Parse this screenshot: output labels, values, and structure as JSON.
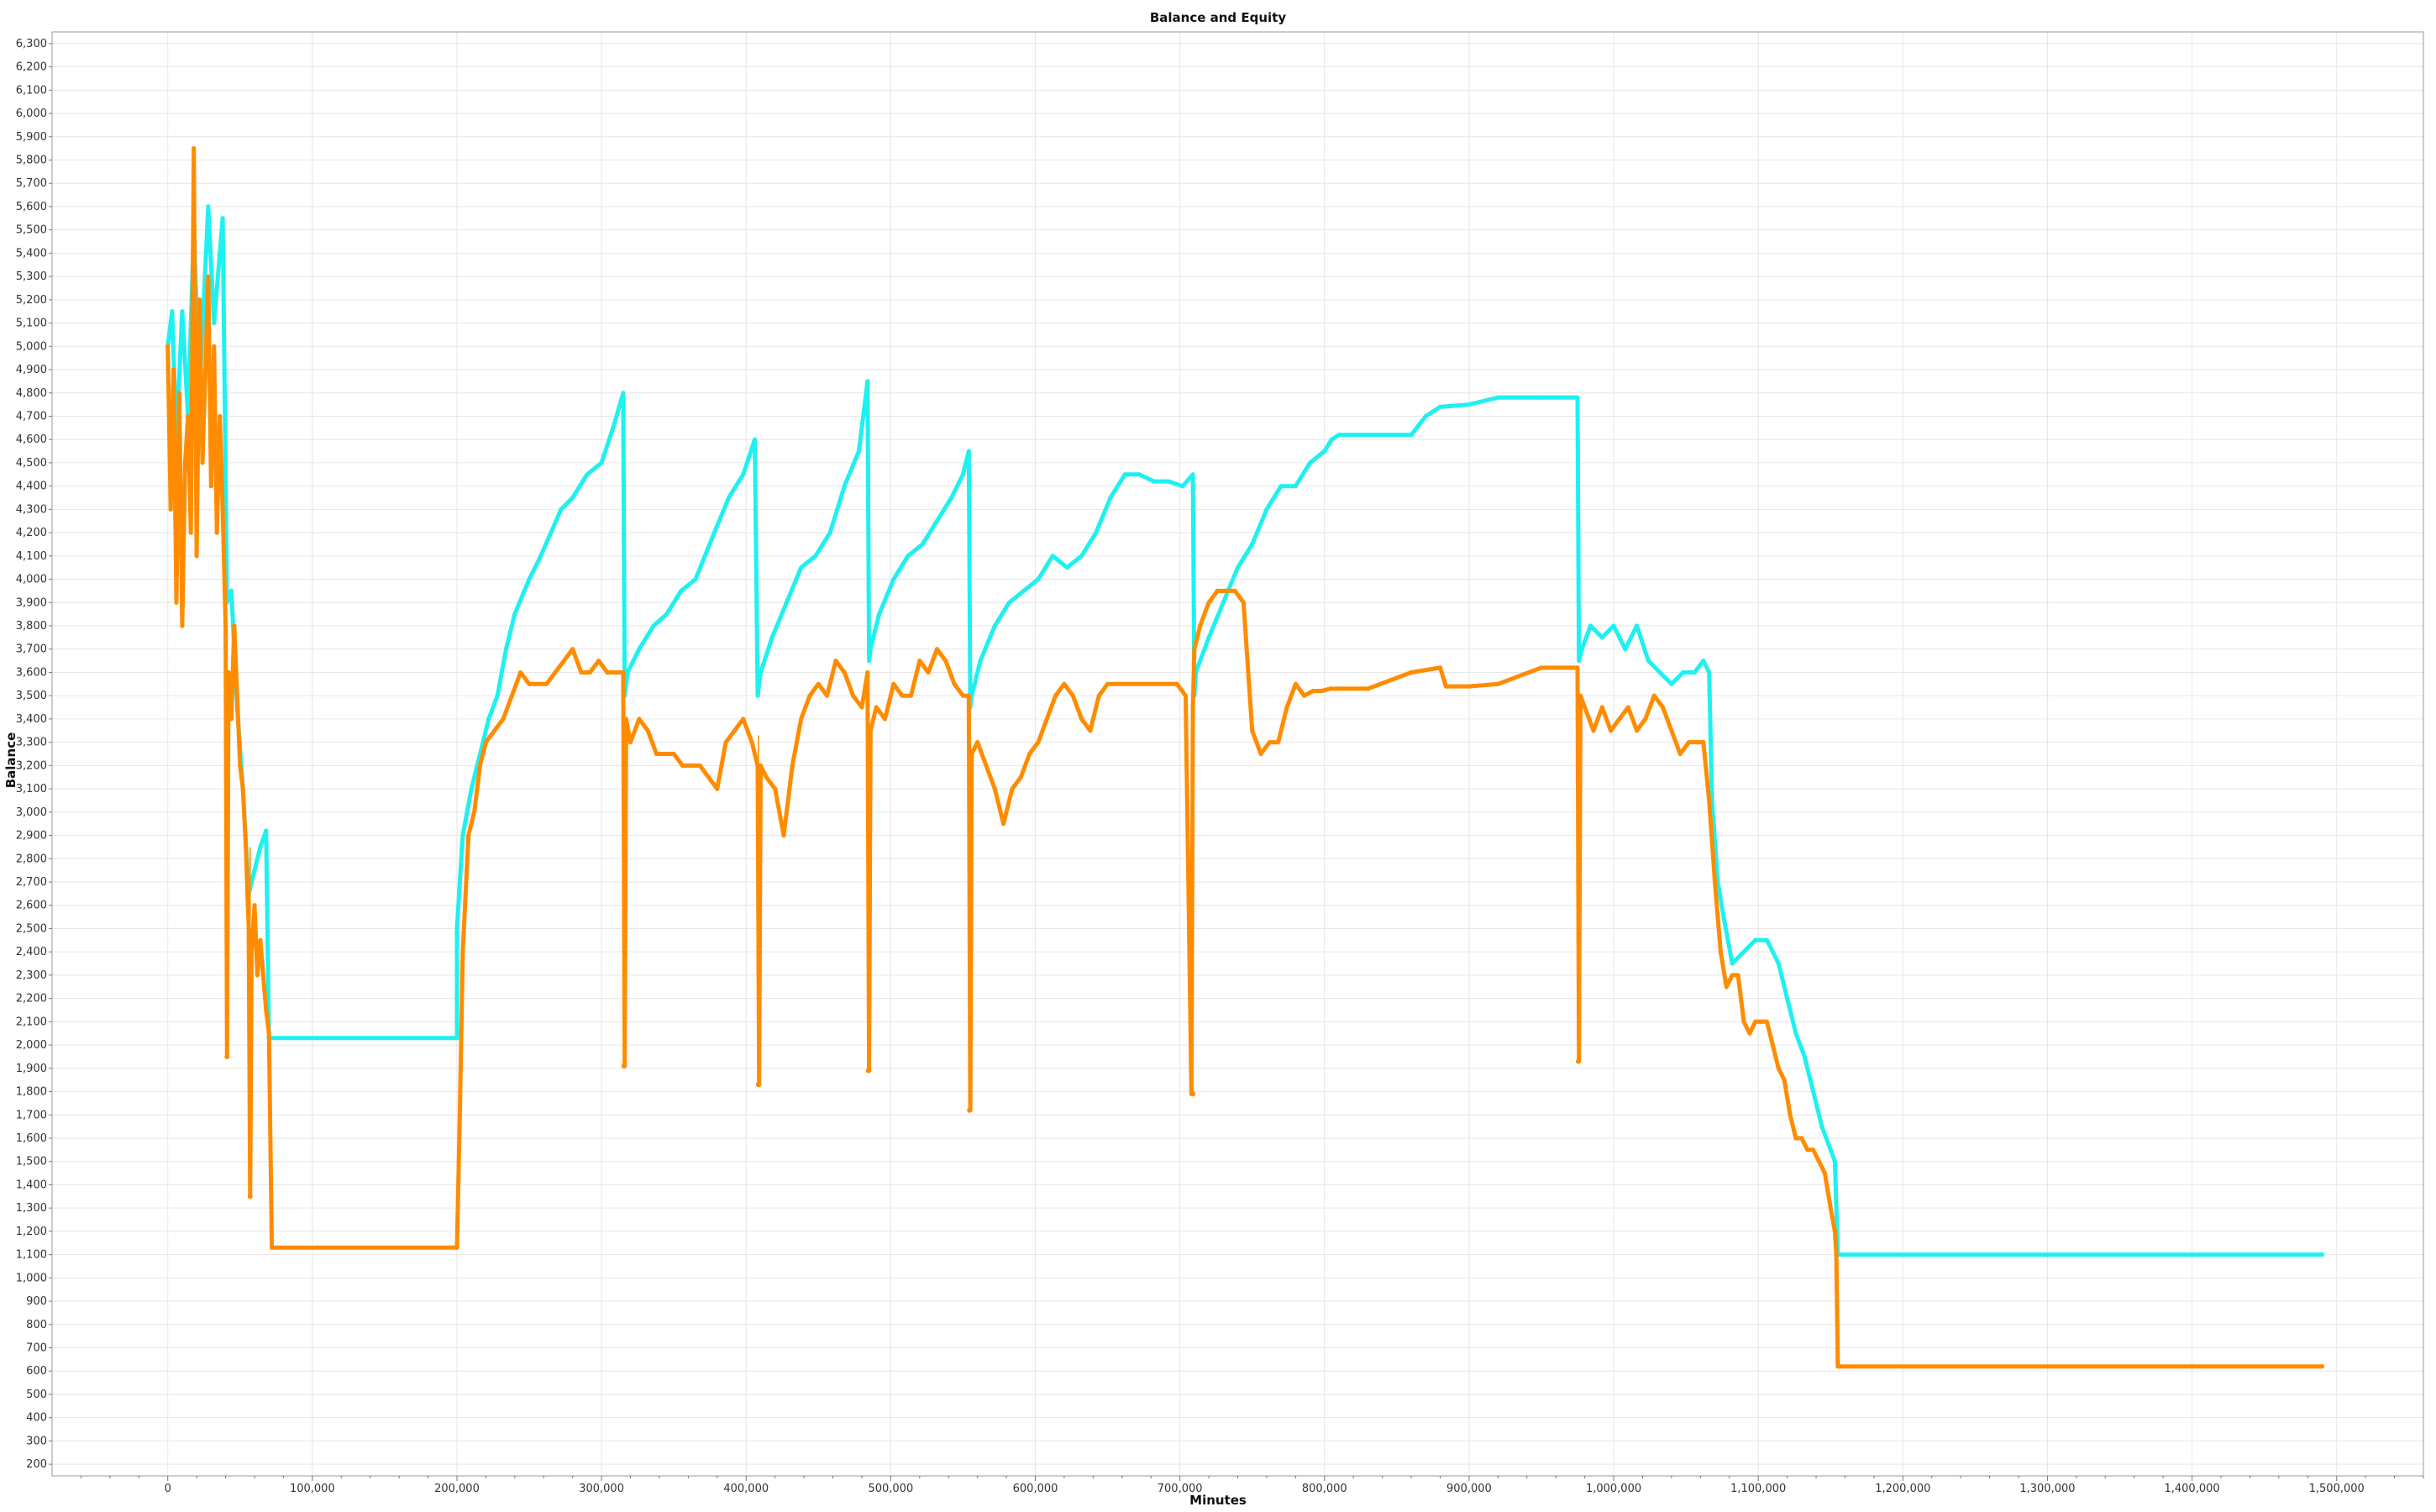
{
  "chart_data": {
    "type": "line",
    "title": "Balance and Equity",
    "xlabel": "Minutes",
    "ylabel": "Balance",
    "xlim": [
      -80000,
      1560000
    ],
    "ylim": [
      150,
      6350
    ],
    "x_ticks": [
      0,
      100000,
      200000,
      300000,
      400000,
      500000,
      600000,
      700000,
      800000,
      900000,
      1000000,
      1100000,
      1200000,
      1300000,
      1400000,
      1500000
    ],
    "x_tick_labels": [
      "0",
      "100,000",
      "200,000",
      "300,000",
      "400,000",
      "500,000",
      "600,000",
      "700,000",
      "800,000",
      "900,000",
      "1,000,000",
      "1,100,000",
      "1,200,000",
      "1,300,000",
      "1,400,000",
      "1,500,000"
    ],
    "y_ticks": [
      200,
      300,
      400,
      500,
      600,
      700,
      800,
      900,
      1000,
      1100,
      1200,
      1300,
      1400,
      1500,
      1600,
      1700,
      1800,
      1900,
      2000,
      2100,
      2200,
      2300,
      2400,
      2500,
      2600,
      2700,
      2800,
      2900,
      3000,
      3100,
      3200,
      3300,
      3400,
      3500,
      3600,
      3700,
      3800,
      3900,
      4000,
      4100,
      4200,
      4300,
      4400,
      4500,
      4600,
      4700,
      4800,
      4900,
      5000,
      5100,
      5200,
      5300,
      5400,
      5500,
      5600,
      5700,
      5800,
      5900,
      6000,
      6100,
      6200,
      6300
    ],
    "y_tick_labels": [
      "200",
      "300",
      "400",
      "500",
      "600",
      "700",
      "800",
      "900",
      "1,000",
      "1,100",
      "1,200",
      "1,300",
      "1,400",
      "1,500",
      "1,600",
      "1,700",
      "1,800",
      "1,900",
      "2,000",
      "2,100",
      "2,200",
      "2,300",
      "2,400",
      "2,500",
      "2,600",
      "2,700",
      "2,800",
      "2,900",
      "3,000",
      "3,100",
      "3,200",
      "3,300",
      "3,400",
      "3,500",
      "3,600",
      "3,700",
      "3,800",
      "3,900",
      "4,000",
      "4,100",
      "4,200",
      "4,300",
      "4,400",
      "4,500",
      "4,600",
      "4,700",
      "4,800",
      "4,900",
      "5,000",
      "5,100",
      "5,200",
      "5,300",
      "5,400",
      "5,500",
      "5,600",
      "5,700",
      "5,800",
      "5,900",
      "6,000",
      "6,100",
      "6,200",
      "6,300"
    ],
    "grid": true,
    "series": [
      {
        "color": "#1FF0F0",
        "x": [
          0,
          3000,
          6000,
          10000,
          14000,
          18000,
          22000,
          25000,
          28000,
          32000,
          36000,
          38000,
          41000,
          44000,
          46000,
          48000,
          52000,
          56000,
          60000,
          64000,
          68000,
          70000,
          200000,
          200000,
          204000,
          210000,
          216000,
          222000,
          228000,
          234000,
          240000,
          250000,
          258000,
          265000,
          272000,
          280000,
          290000,
          300000,
          308000,
          315000,
          316000,
          318000,
          326000,
          336000,
          345000,
          355000,
          365000,
          378000,
          388000,
          398000,
          406000,
          408000,
          410000,
          418000,
          428000,
          438000,
          448000,
          458000,
          468000,
          478000,
          484000,
          485000,
          486000,
          492000,
          502000,
          512000,
          522000,
          532000,
          542000,
          550000,
          554000,
          555000,
          556000,
          562000,
          572000,
          582000,
          592000,
          602000,
          612000,
          622000,
          632000,
          642000,
          652000,
          662000,
          672000,
          682000,
          692000,
          702000,
          709000,
          710000,
          711000,
          720000,
          730000,
          740000,
          750000,
          760000,
          770000,
          780000,
          790000,
          800000,
          805000,
          810000,
          840000,
          860000,
          870000,
          880000,
          900000,
          920000,
          950000,
          975000,
          976000,
          978000,
          984000,
          992000,
          1000000,
          1008000,
          1016000,
          1024000,
          1032000,
          1040000,
          1048000,
          1056000,
          1062000,
          1066000,
          1068000,
          1072000,
          1076000,
          1082000,
          1090000,
          1098000,
          1106000,
          1114000,
          1120000,
          1126000,
          1132000,
          1138000,
          1144000,
          1150000,
          1153000,
          1155000,
          1490000
        ],
        "y": [
          5000,
          5150,
          4600,
          5150,
          4700,
          5500,
          4800,
          5200,
          5600,
          5100,
          5400,
          5550,
          3900,
          3950,
          3700,
          3450,
          3100,
          2650,
          2750,
          2850,
          2920,
          2030,
          2030,
          2500,
          2900,
          3100,
          3250,
          3400,
          3500,
          3700,
          3850,
          4000,
          4100,
          4200,
          4300,
          4350,
          4450,
          4500,
          4650,
          4800,
          3500,
          3600,
          3700,
          3800,
          3850,
          3950,
          4000,
          4200,
          4350,
          4450,
          4600,
          3500,
          3600,
          3750,
          3900,
          4050,
          4100,
          4200,
          4400,
          4550,
          4850,
          3650,
          3700,
          3850,
          4000,
          4100,
          4150,
          4250,
          4350,
          4450,
          4550,
          3450,
          3500,
          3650,
          3800,
          3900,
          3950,
          4000,
          4100,
          4050,
          4100,
          4200,
          4350,
          4450,
          4450,
          4420,
          4420,
          4400,
          4450,
          3500,
          3600,
          3750,
          3900,
          4050,
          4150,
          4300,
          4400,
          4400,
          4500,
          4550,
          4600,
          4620,
          4620,
          4620,
          4700,
          4740,
          4750,
          4780,
          4780,
          4780,
          3650,
          3700,
          3800,
          3750,
          3800,
          3700,
          3800,
          3650,
          3600,
          3550,
          3600,
          3600,
          3650,
          3600,
          3050,
          2700,
          2550,
          2350,
          2400,
          2450,
          2450,
          2350,
          2200,
          2050,
          1950,
          1800,
          1650,
          1550,
          1500,
          1100,
          1100
        ]
      },
      {
        "color": "#FF8C00",
        "x": [
          0,
          2000,
          4000,
          6000,
          8000,
          10000,
          12000,
          14000,
          16000,
          18000,
          20000,
          22000,
          24000,
          26000,
          28000,
          30000,
          32000,
          34000,
          36000,
          38000,
          40000,
          41000,
          42000,
          44000,
          46000,
          48000,
          50000,
          52000,
          54000,
          56000,
          57000,
          58000,
          60000,
          62000,
          64000,
          66000,
          68000,
          70000,
          72000,
          200000,
          202000,
          204000,
          208000,
          212000,
          216000,
          220000,
          226000,
          232000,
          238000,
          244000,
          250000,
          256000,
          262000,
          268000,
          274000,
          280000,
          286000,
          292000,
          298000,
          304000,
          310000,
          315000,
          316000,
          317000,
          320000,
          326000,
          332000,
          338000,
          344000,
          350000,
          356000,
          362000,
          368000,
          374000,
          380000,
          386000,
          392000,
          398000,
          404000,
          408000,
          409000,
          410000,
          414000,
          420000,
          426000,
          432000,
          438000,
          444000,
          450000,
          456000,
          462000,
          468000,
          474000,
          480000,
          484000,
          485000,
          486000,
          490000,
          496000,
          502000,
          508000,
          514000,
          520000,
          526000,
          532000,
          538000,
          544000,
          550000,
          554000,
          555000,
          556000,
          560000,
          566000,
          572000,
          578000,
          584000,
          590000,
          596000,
          602000,
          608000,
          614000,
          620000,
          626000,
          632000,
          638000,
          644000,
          650000,
          656000,
          662000,
          668000,
          674000,
          680000,
          686000,
          692000,
          698000,
          704000,
          708000,
          709000,
          710000,
          714000,
          720000,
          726000,
          732000,
          738000,
          744000,
          750000,
          756000,
          762000,
          768000,
          774000,
          780000,
          786000,
          792000,
          798000,
          804000,
          810000,
          830000,
          860000,
          880000,
          884000,
          900000,
          920000,
          950000,
          970000,
          975000,
          976000,
          977000,
          980000,
          986000,
          992000,
          998000,
          1004000,
          1010000,
          1016000,
          1022000,
          1028000,
          1034000,
          1040000,
          1046000,
          1052000,
          1058000,
          1062000,
          1066000,
          1070000,
          1074000,
          1078000,
          1082000,
          1086000,
          1090000,
          1094000,
          1098000,
          1102000,
          1106000,
          1110000,
          1114000,
          1118000,
          1122000,
          1126000,
          1130000,
          1134000,
          1138000,
          1142000,
          1146000,
          1150000,
          1153000,
          1154000,
          1155000,
          1490000
        ],
        "y": [
          5000,
          4300,
          4900,
          3900,
          4800,
          3800,
          4500,
          4700,
          4200,
          5850,
          4100,
          5200,
          4500,
          4900,
          5300,
          4400,
          5000,
          4200,
          4700,
          4300,
          3800,
          1950,
          3600,
          3400,
          3800,
          3500,
          3200,
          3100,
          2850,
          2500,
          1350,
          2400,
          2600,
          2300,
          2450,
          2300,
          2150,
          2050,
          1130,
          1130,
          1700,
          2400,
          2900,
          3000,
          3200,
          3300,
          3350,
          3400,
          3500,
          3600,
          3550,
          3550,
          3550,
          3600,
          3650,
          3700,
          3600,
          3600,
          3650,
          3600,
          3600,
          3600,
          1910,
          3400,
          3300,
          3400,
          3350,
          3250,
          3250,
          3250,
          3200,
          3200,
          3200,
          3150,
          3100,
          3300,
          3350,
          3400,
          3300,
          3200,
          1830,
          3200,
          3150,
          3100,
          2900,
          3200,
          3400,
          3500,
          3550,
          3500,
          3650,
          3600,
          3500,
          3450,
          3600,
          1890,
          3350,
          3450,
          3400,
          3550,
          3500,
          3500,
          3650,
          3600,
          3700,
          3650,
          3550,
          3500,
          3500,
          1720,
          3250,
          3300,
          3200,
          3100,
          2950,
          3100,
          3150,
          3250,
          3300,
          3400,
          3500,
          3550,
          3500,
          3400,
          3350,
          3500,
          3550,
          3550,
          3550,
          3550,
          3550,
          3550,
          3550,
          3550,
          3550,
          3500,
          1790,
          3450,
          3700,
          3800,
          3900,
          3950,
          3950,
          3950,
          3900,
          3350,
          3250,
          3300,
          3300,
          3450,
          3550,
          3500,
          3520,
          3520,
          3530,
          3530,
          3530,
          3600,
          3620,
          3540,
          3540,
          3550,
          3620,
          3620,
          3620,
          1930,
          3500,
          3450,
          3350,
          3450,
          3350,
          3400,
          3450,
          3350,
          3400,
          3500,
          3450,
          3350,
          3250,
          3300,
          3300,
          3300,
          3050,
          2700,
          2400,
          2250,
          2300,
          2300,
          2100,
          2050,
          2100,
          2100,
          2100,
          2000,
          1900,
          1850,
          1700,
          1600,
          1600,
          1550,
          1550,
          1500,
          1450,
          1300,
          1200,
          1100,
          620,
          620
        ]
      }
    ],
    "spikes": [
      {
        "x": 41000,
        "y": 1950,
        "color": "#FF8C00"
      },
      {
        "x": 57000,
        "y": 1350,
        "color": "#FF8C00"
      },
      {
        "x": 315500,
        "y": 1910,
        "color": "#FF8C00"
      },
      {
        "x": 408500,
        "y": 1830,
        "color": "#FF8C00"
      },
      {
        "x": 484500,
        "y": 1890,
        "color": "#FF8C00"
      },
      {
        "x": 554500,
        "y": 1720,
        "color": "#FF8C00"
      },
      {
        "x": 709000,
        "y": 1790,
        "color": "#FF8C00"
      },
      {
        "x": 975500,
        "y": 1930,
        "color": "#FF8C00"
      }
    ]
  }
}
